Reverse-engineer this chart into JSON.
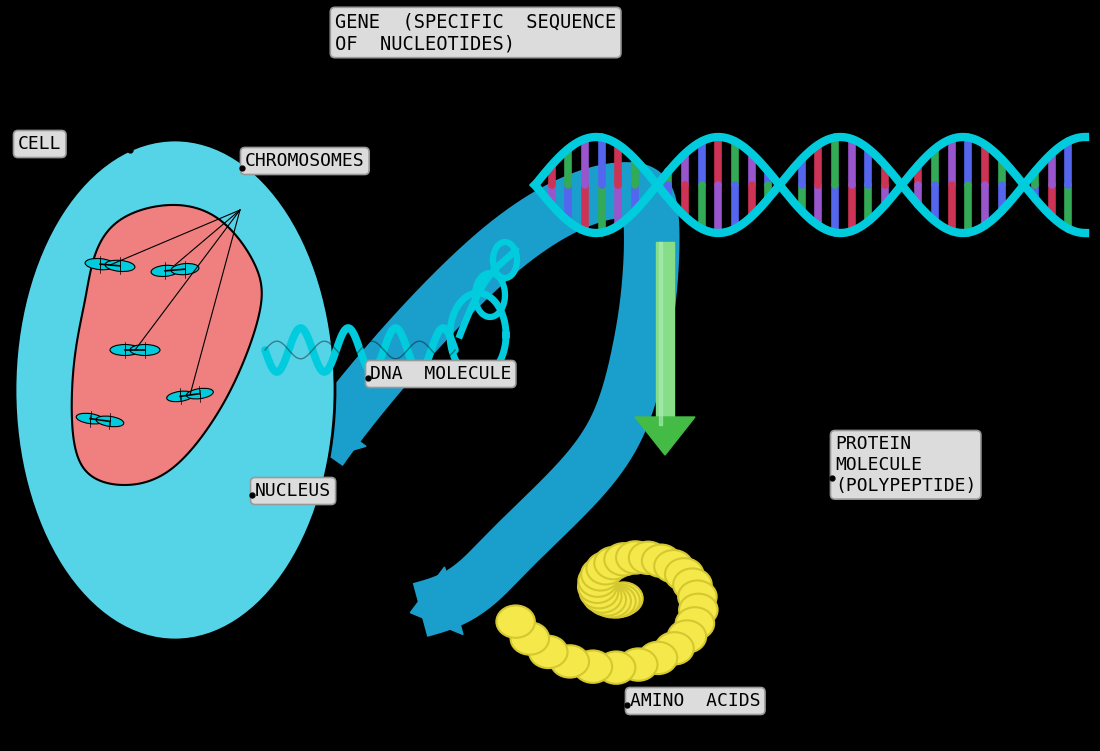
{
  "bg_color": "#000000",
  "label_box_color": "#dcdcdc",
  "label_box_edge": "#999999",
  "cell_outer_color": "#55d4e8",
  "cell_inner_color": "#f08080",
  "dna_strand_color": "#00ccdd",
  "arrow_blue": "#1a9fcc",
  "arrow_green_top": "#88dd88",
  "arrow_green_bot": "#44bb44",
  "chromosome_color": "#00ccdd",
  "amino_acid_color": "#f5e84a",
  "amino_acid_edge": "#d4c830",
  "labels": {
    "gene": "GENE  (SPECIFIC  SEQUENCE\nOF  NUCLEOTIDES)",
    "cell": "CELL",
    "chromosomes": "CHROMOSOMES",
    "dna": "DNA  MOLECULE",
    "nucleus": "NUCLEUS",
    "protein": "PROTEIN\nMOLECULE\n(POLYPEPTIDE)",
    "amino": "AMINO  ACIDS"
  },
  "label_fontsize": 13,
  "label_font": "monospace"
}
